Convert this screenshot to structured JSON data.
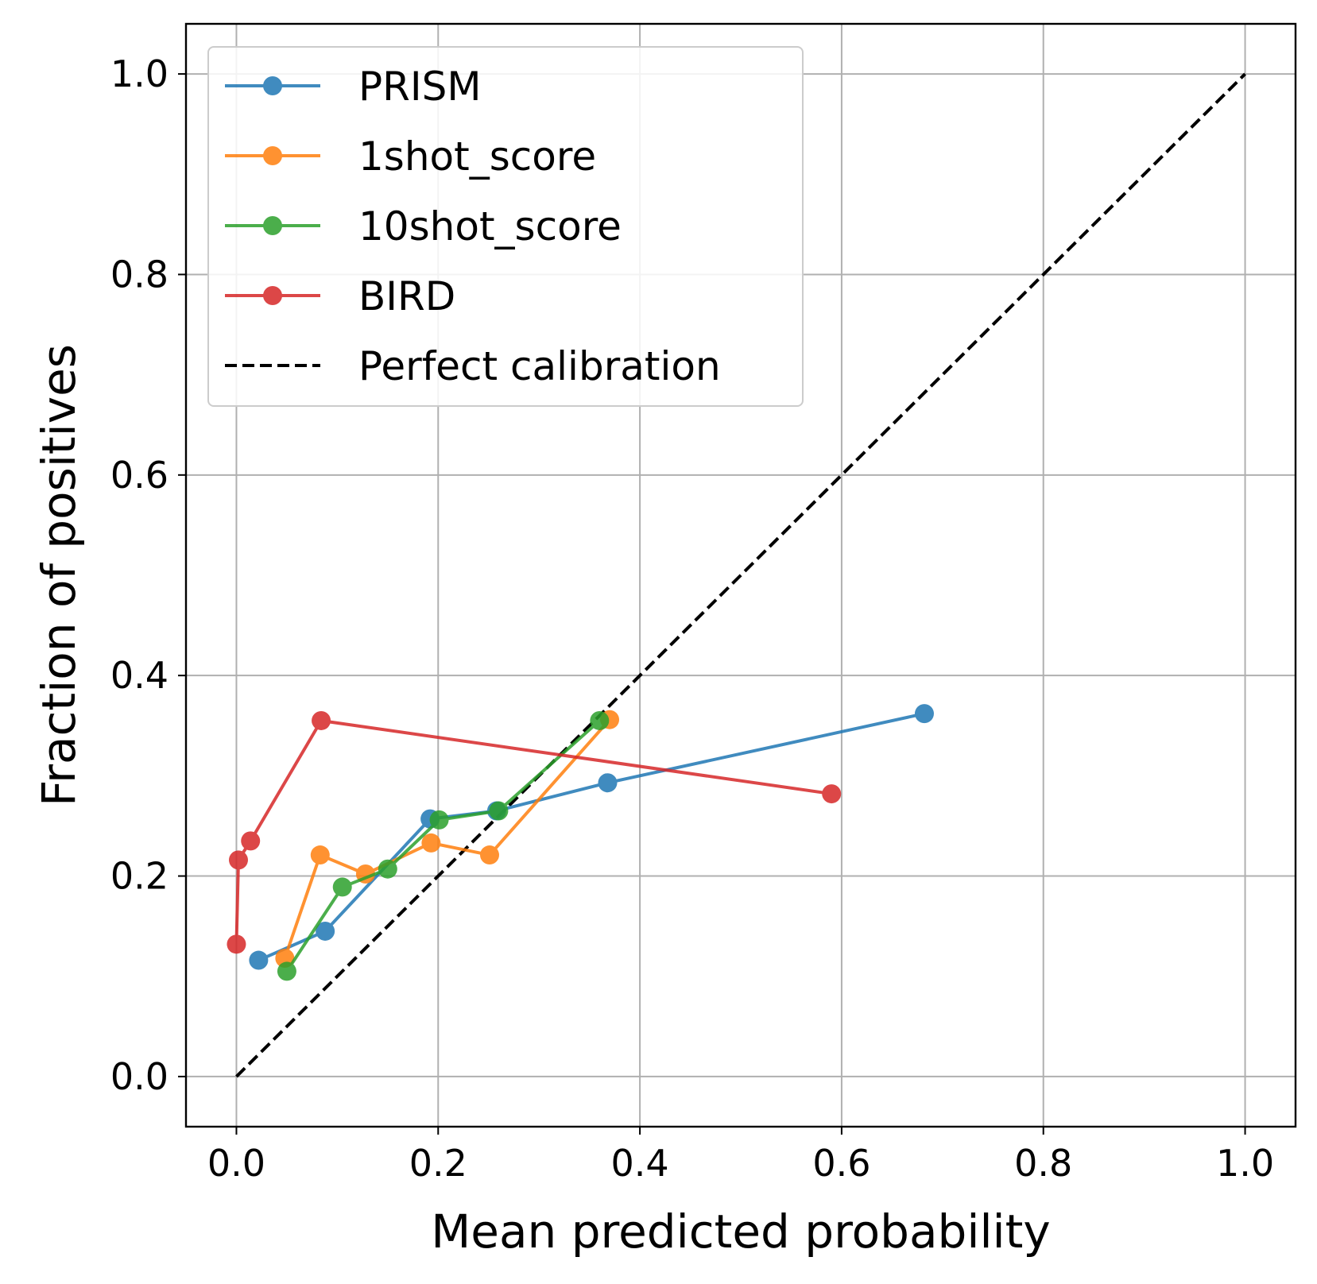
{
  "chart_data": {
    "type": "line",
    "title": "",
    "xlabel": "Mean predicted probability",
    "ylabel": "Fraction of positives",
    "xlim": [
      -0.05,
      1.05
    ],
    "ylim": [
      -0.05,
      1.05
    ],
    "grid": true,
    "legend_position": "top-left",
    "x_ticks": [
      0.0,
      0.2,
      0.4,
      0.6,
      0.8,
      1.0
    ],
    "x_tick_labels": [
      "0.0",
      "0.2",
      "0.4",
      "0.6",
      "0.8",
      "1.0"
    ],
    "y_ticks": [
      0.0,
      0.2,
      0.4,
      0.6,
      0.8,
      1.0
    ],
    "y_tick_labels": [
      "0.0",
      "0.2",
      "0.4",
      "0.6",
      "0.8",
      "1.0"
    ],
    "series": [
      {
        "name": "PRISM",
        "color": "#1f77b4",
        "x": [
          0.022,
          0.088,
          0.192,
          0.258,
          0.368,
          0.682
        ],
        "y": [
          0.116,
          0.145,
          0.257,
          0.265,
          0.293,
          0.362
        ]
      },
      {
        "name": "1shot_score",
        "color": "#ff7f0e",
        "x": [
          0.048,
          0.083,
          0.128,
          0.193,
          0.251,
          0.37
        ],
        "y": [
          0.118,
          0.221,
          0.202,
          0.233,
          0.221,
          0.356
        ]
      },
      {
        "name": "10shot_score",
        "color": "#2ca02c",
        "x": [
          0.05,
          0.105,
          0.15,
          0.201,
          0.26,
          0.36
        ],
        "y": [
          0.105,
          0.189,
          0.207,
          0.256,
          0.265,
          0.355
        ]
      },
      {
        "name": "BIRD",
        "color": "#d62728",
        "x": [
          0.0,
          0.002,
          0.014,
          0.084,
          0.59
        ],
        "y": [
          0.132,
          0.216,
          0.235,
          0.355,
          0.282
        ]
      }
    ],
    "reference_line": {
      "name": "Perfect calibration",
      "color": "#000000",
      "x": [
        0.0,
        1.0
      ],
      "y": [
        0.0,
        1.0
      ]
    }
  }
}
